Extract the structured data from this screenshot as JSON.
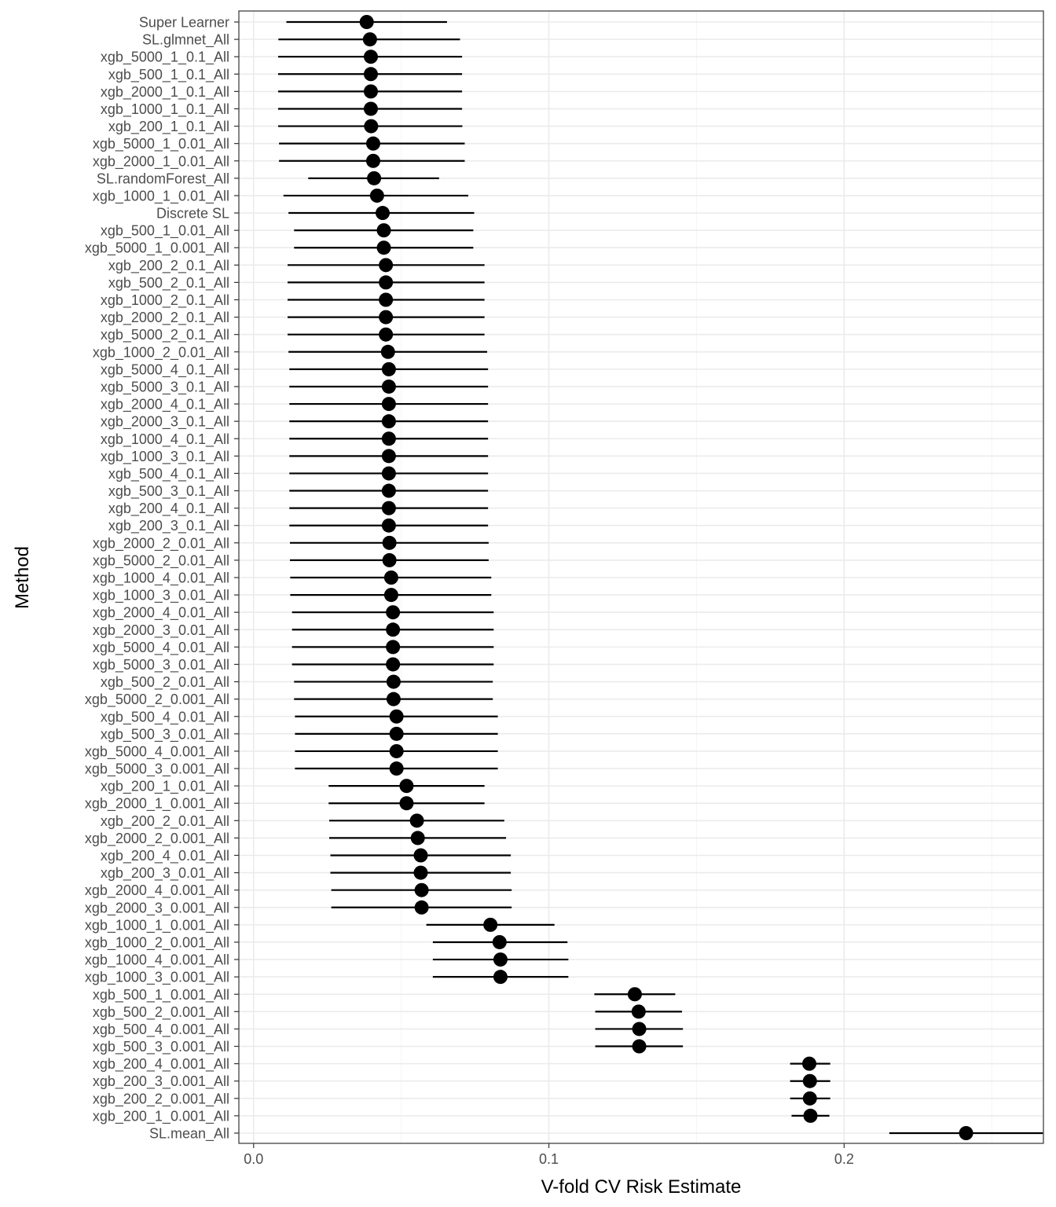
{
  "chart_data": {
    "type": "scatter",
    "subtype": "point-range",
    "title": "",
    "xlabel": "V-fold CV Risk Estimate",
    "ylabel": "Method",
    "xlim": [
      -0.005,
      0.2675
    ],
    "x_ticks": [
      0.0,
      0.1,
      0.2
    ],
    "x_tick_labels": [
      "0.0",
      "0.1",
      "0.2"
    ],
    "grid": true,
    "colors": {
      "points": "#000000",
      "grid_major": "#ebebeb",
      "grid_minor": "#f5f5f5",
      "panel_border": "#333333",
      "axis_text": "#4d4d4d"
    },
    "methods": [
      {
        "name": "Super Learner",
        "estimate": 0.0383,
        "lower": 0.0111,
        "upper": 0.0655
      },
      {
        "name": "SL.glmnet_All",
        "estimate": 0.0394,
        "lower": 0.0084,
        "upper": 0.0699
      },
      {
        "name": "xgb_5000_1_0.1_All",
        "estimate": 0.0397,
        "lower": 0.0083,
        "upper": 0.0706
      },
      {
        "name": "xgb_500_1_0.1_All",
        "estimate": 0.0397,
        "lower": 0.0083,
        "upper": 0.0706
      },
      {
        "name": "xgb_2000_1_0.1_All",
        "estimate": 0.0397,
        "lower": 0.0083,
        "upper": 0.0706
      },
      {
        "name": "xgb_1000_1_0.1_All",
        "estimate": 0.0397,
        "lower": 0.0083,
        "upper": 0.0706
      },
      {
        "name": "xgb_200_1_0.1_All",
        "estimate": 0.0398,
        "lower": 0.0083,
        "upper": 0.0707
      },
      {
        "name": "xgb_5000_1_0.01_All",
        "estimate": 0.0405,
        "lower": 0.0086,
        "upper": 0.0715
      },
      {
        "name": "xgb_2000_1_0.01_All",
        "estimate": 0.0405,
        "lower": 0.0086,
        "upper": 0.0715
      },
      {
        "name": "SL.randomForest_All",
        "estimate": 0.0408,
        "lower": 0.0185,
        "upper": 0.0628
      },
      {
        "name": "xgb_1000_1_0.01_All",
        "estimate": 0.0418,
        "lower": 0.0101,
        "upper": 0.0727
      },
      {
        "name": "Discrete SL",
        "estimate": 0.0437,
        "lower": 0.0118,
        "upper": 0.0747
      },
      {
        "name": "xgb_500_1_0.01_All",
        "estimate": 0.0441,
        "lower": 0.0137,
        "upper": 0.0744
      },
      {
        "name": "xgb_5000_1_0.001_All",
        "estimate": 0.0441,
        "lower": 0.0137,
        "upper": 0.0744
      },
      {
        "name": "xgb_200_2_0.1_All",
        "estimate": 0.0448,
        "lower": 0.0115,
        "upper": 0.0782
      },
      {
        "name": "xgb_500_2_0.1_All",
        "estimate": 0.0448,
        "lower": 0.0115,
        "upper": 0.0782
      },
      {
        "name": "xgb_1000_2_0.1_All",
        "estimate": 0.0448,
        "lower": 0.0115,
        "upper": 0.0782
      },
      {
        "name": "xgb_2000_2_0.1_All",
        "estimate": 0.0448,
        "lower": 0.0115,
        "upper": 0.0782
      },
      {
        "name": "xgb_5000_2_0.1_All",
        "estimate": 0.0448,
        "lower": 0.0115,
        "upper": 0.0782
      },
      {
        "name": "xgb_1000_2_0.01_All",
        "estimate": 0.0455,
        "lower": 0.0118,
        "upper": 0.0791
      },
      {
        "name": "xgb_5000_4_0.1_All",
        "estimate": 0.0458,
        "lower": 0.0121,
        "upper": 0.0794
      },
      {
        "name": "xgb_5000_3_0.1_All",
        "estimate": 0.0458,
        "lower": 0.0121,
        "upper": 0.0794
      },
      {
        "name": "xgb_2000_4_0.1_All",
        "estimate": 0.0458,
        "lower": 0.0121,
        "upper": 0.0794
      },
      {
        "name": "xgb_2000_3_0.1_All",
        "estimate": 0.0458,
        "lower": 0.0121,
        "upper": 0.0794
      },
      {
        "name": "xgb_1000_4_0.1_All",
        "estimate": 0.0458,
        "lower": 0.0121,
        "upper": 0.0794
      },
      {
        "name": "xgb_1000_3_0.1_All",
        "estimate": 0.0458,
        "lower": 0.0121,
        "upper": 0.0794
      },
      {
        "name": "xgb_500_4_0.1_All",
        "estimate": 0.0458,
        "lower": 0.0121,
        "upper": 0.0794
      },
      {
        "name": "xgb_500_3_0.1_All",
        "estimate": 0.0458,
        "lower": 0.0121,
        "upper": 0.0794
      },
      {
        "name": "xgb_200_4_0.1_All",
        "estimate": 0.0458,
        "lower": 0.0121,
        "upper": 0.0794
      },
      {
        "name": "xgb_200_3_0.1_All",
        "estimate": 0.0458,
        "lower": 0.0121,
        "upper": 0.0794
      },
      {
        "name": "xgb_2000_2_0.01_All",
        "estimate": 0.046,
        "lower": 0.0123,
        "upper": 0.0796
      },
      {
        "name": "xgb_5000_2_0.01_All",
        "estimate": 0.046,
        "lower": 0.0123,
        "upper": 0.0796
      },
      {
        "name": "xgb_1000_4_0.01_All",
        "estimate": 0.0466,
        "lower": 0.0124,
        "upper": 0.0805
      },
      {
        "name": "xgb_1000_3_0.01_All",
        "estimate": 0.0466,
        "lower": 0.0124,
        "upper": 0.0805
      },
      {
        "name": "xgb_2000_4_0.01_All",
        "estimate": 0.0472,
        "lower": 0.013,
        "upper": 0.0813
      },
      {
        "name": "xgb_2000_3_0.01_All",
        "estimate": 0.0472,
        "lower": 0.013,
        "upper": 0.0813
      },
      {
        "name": "xgb_5000_4_0.01_All",
        "estimate": 0.0472,
        "lower": 0.013,
        "upper": 0.0813
      },
      {
        "name": "xgb_5000_3_0.01_All",
        "estimate": 0.0472,
        "lower": 0.013,
        "upper": 0.0813
      },
      {
        "name": "xgb_500_2_0.01_All",
        "estimate": 0.0474,
        "lower": 0.0137,
        "upper": 0.081
      },
      {
        "name": "xgb_5000_2_0.001_All",
        "estimate": 0.0474,
        "lower": 0.0137,
        "upper": 0.081
      },
      {
        "name": "xgb_500_4_0.01_All",
        "estimate": 0.0484,
        "lower": 0.014,
        "upper": 0.0827
      },
      {
        "name": "xgb_500_3_0.01_All",
        "estimate": 0.0484,
        "lower": 0.014,
        "upper": 0.0827
      },
      {
        "name": "xgb_5000_4_0.001_All",
        "estimate": 0.0484,
        "lower": 0.014,
        "upper": 0.0827
      },
      {
        "name": "xgb_5000_3_0.001_All",
        "estimate": 0.0484,
        "lower": 0.014,
        "upper": 0.0827
      },
      {
        "name": "xgb_200_1_0.01_All",
        "estimate": 0.0518,
        "lower": 0.0254,
        "upper": 0.0782
      },
      {
        "name": "xgb_2000_1_0.001_All",
        "estimate": 0.0518,
        "lower": 0.0254,
        "upper": 0.0782
      },
      {
        "name": "xgb_200_2_0.01_All",
        "estimate": 0.0553,
        "lower": 0.0256,
        "upper": 0.0849
      },
      {
        "name": "xgb_2000_2_0.001_All",
        "estimate": 0.0556,
        "lower": 0.0256,
        "upper": 0.0855
      },
      {
        "name": "xgb_200_4_0.01_All",
        "estimate": 0.0566,
        "lower": 0.026,
        "upper": 0.0871
      },
      {
        "name": "xgb_200_3_0.01_All",
        "estimate": 0.0566,
        "lower": 0.026,
        "upper": 0.0871
      },
      {
        "name": "xgb_2000_4_0.001_All",
        "estimate": 0.0569,
        "lower": 0.0263,
        "upper": 0.0874
      },
      {
        "name": "xgb_2000_3_0.001_All",
        "estimate": 0.0569,
        "lower": 0.0263,
        "upper": 0.0874
      },
      {
        "name": "xgb_1000_1_0.001_All",
        "estimate": 0.0802,
        "lower": 0.0585,
        "upper": 0.1019
      },
      {
        "name": "xgb_1000_2_0.001_All",
        "estimate": 0.0833,
        "lower": 0.0607,
        "upper": 0.1063
      },
      {
        "name": "xgb_1000_4_0.001_All",
        "estimate": 0.0836,
        "lower": 0.0607,
        "upper": 0.1066
      },
      {
        "name": "xgb_1000_3_0.001_All",
        "estimate": 0.0836,
        "lower": 0.0607,
        "upper": 0.1066
      },
      {
        "name": "xgb_500_1_0.001_All",
        "estimate": 0.1291,
        "lower": 0.1154,
        "upper": 0.1428
      },
      {
        "name": "xgb_500_2_0.001_All",
        "estimate": 0.1304,
        "lower": 0.1157,
        "upper": 0.1451
      },
      {
        "name": "xgb_500_4_0.001_All",
        "estimate": 0.1306,
        "lower": 0.1157,
        "upper": 0.1454
      },
      {
        "name": "xgb_500_3_0.001_All",
        "estimate": 0.1306,
        "lower": 0.1157,
        "upper": 0.1454
      },
      {
        "name": "xgb_200_4_0.001_All",
        "estimate": 0.1882,
        "lower": 0.1817,
        "upper": 0.1953
      },
      {
        "name": "xgb_200_3_0.001_All",
        "estimate": 0.1884,
        "lower": 0.1817,
        "upper": 0.1953
      },
      {
        "name": "xgb_200_2_0.001_All",
        "estimate": 0.1884,
        "lower": 0.1817,
        "upper": 0.1953
      },
      {
        "name": "xgb_200_1_0.001_All",
        "estimate": 0.1886,
        "lower": 0.1822,
        "upper": 0.195
      },
      {
        "name": "SL.mean_All",
        "estimate": 0.2413,
        "lower": 0.2153,
        "upper": 0.2673
      }
    ]
  }
}
